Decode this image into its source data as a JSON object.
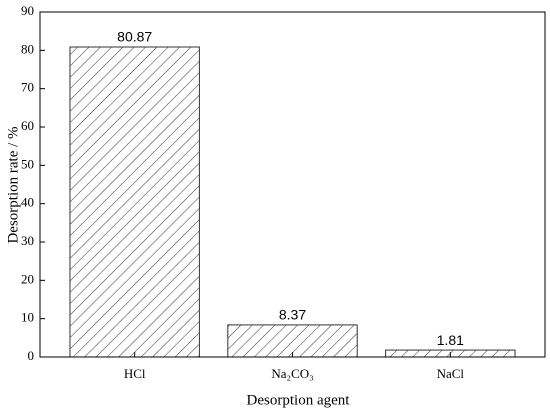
{
  "chart_data": {
    "type": "bar",
    "x_label": "Desorption agent",
    "y_label": "Desorption rate / %",
    "categories": [
      "HCl",
      "Na₂CO₃",
      "NaCl"
    ],
    "values": [
      80.87,
      8.37,
      1.81
    ],
    "color": "#333333",
    "ylim": [
      0,
      90
    ],
    "yticks": [
      0,
      10,
      20,
      30,
      40,
      50,
      60,
      70,
      80,
      90
    ]
  }
}
